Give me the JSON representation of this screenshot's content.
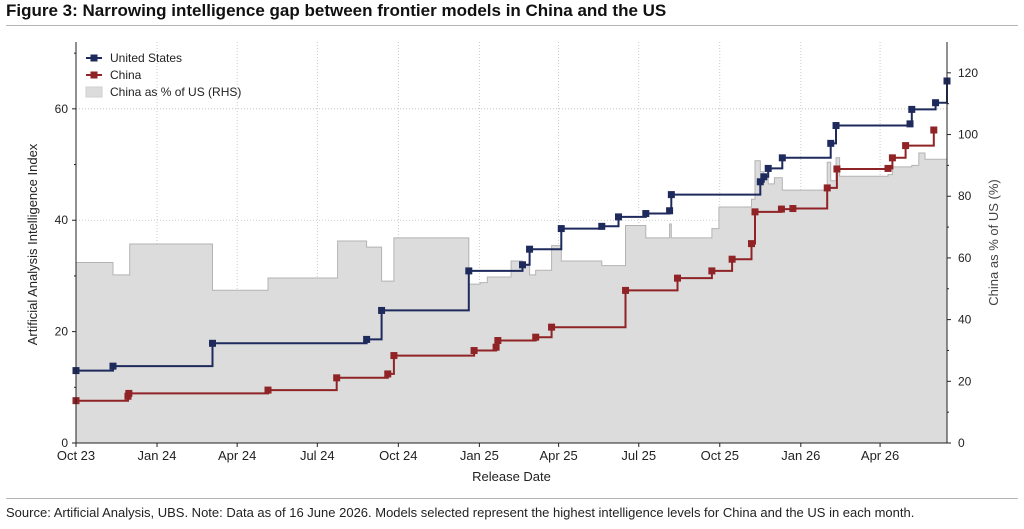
{
  "figure": {
    "title": "Figure 3: Narrowing intelligence gap between frontier models in China and the US",
    "source": "Source: Artificial Analysis, UBS. Note: Data as of 16 June 2026. Models selected represent the highest intelligence levels for China and the US in each month."
  },
  "colors": {
    "us": "#1f2a5c",
    "china": "#8f2325",
    "ratio_fill": "#dcdcdc",
    "ratio_edge": "#b3b3b3"
  },
  "chart_data": {
    "type": "line",
    "xlabel": "Release Date",
    "ylabel": "Artificial Analysis Intelligence Index",
    "y2label": "China as % of US (%)",
    "x_ticks": [
      "Oct 23",
      "Jan 24",
      "Apr 24",
      "Jul 24",
      "Oct 24",
      "Jan 25",
      "Apr 25",
      "Jul 25",
      "Oct 25",
      "Jan 26",
      "Apr 26"
    ],
    "x_range": [
      "2023-10-01",
      "2026-06-16"
    ],
    "ylim": [
      0,
      72
    ],
    "y_ticks": [
      0,
      20,
      40,
      60
    ],
    "y2lim": [
      0,
      130
    ],
    "y2_ticks": [
      0,
      20,
      40,
      60,
      80,
      100,
      120
    ],
    "grid": true,
    "legend": "top-left",
    "series": [
      {
        "name": "United States",
        "key": "us",
        "step": true,
        "points": [
          [
            "2023-10-01",
            13.0
          ],
          [
            "2023-11-12",
            13.8
          ],
          [
            "2024-03-04",
            17.9
          ],
          [
            "2024-08-26",
            18.6
          ],
          [
            "2024-09-12",
            23.8
          ],
          [
            "2024-12-20",
            30.9
          ],
          [
            "2025-02-19",
            32.0
          ],
          [
            "2025-02-27",
            34.8
          ],
          [
            "2025-04-04",
            38.5
          ],
          [
            "2025-05-20",
            38.9
          ],
          [
            "2025-06-08",
            40.6
          ],
          [
            "2025-07-09",
            41.2
          ],
          [
            "2025-08-05",
            41.7
          ],
          [
            "2025-08-07",
            44.6
          ],
          [
            "2025-11-16",
            46.9
          ],
          [
            "2025-11-20",
            47.8
          ],
          [
            "2025-11-25",
            49.3
          ],
          [
            "2025-12-11",
            51.2
          ],
          [
            "2026-02-04",
            53.8
          ],
          [
            "2026-02-10",
            57.0
          ],
          [
            "2026-05-05",
            57.3
          ],
          [
            "2026-05-07",
            59.9
          ],
          [
            "2026-06-03",
            61.1
          ],
          [
            "2026-06-16",
            65.0
          ]
        ]
      },
      {
        "name": "China",
        "key": "china",
        "step": true,
        "points": [
          [
            "2023-10-01",
            7.6
          ],
          [
            "2023-11-29",
            8.4
          ],
          [
            "2023-11-30",
            8.9
          ],
          [
            "2024-05-06",
            9.5
          ],
          [
            "2024-07-23",
            11.7
          ],
          [
            "2024-09-19",
            12.4
          ],
          [
            "2024-09-26",
            15.7
          ],
          [
            "2024-12-26",
            16.6
          ],
          [
            "2025-01-20",
            17.2
          ],
          [
            "2025-01-22",
            18.4
          ],
          [
            "2025-03-06",
            19.0
          ],
          [
            "2025-03-24",
            20.8
          ],
          [
            "2025-06-16",
            27.4
          ],
          [
            "2025-08-14",
            29.6
          ],
          [
            "2025-09-22",
            30.9
          ],
          [
            "2025-10-15",
            33.0
          ],
          [
            "2025-11-06",
            35.8
          ],
          [
            "2025-11-10",
            41.5
          ],
          [
            "2025-12-10",
            42.0
          ],
          [
            "2025-12-23",
            42.1
          ],
          [
            "2026-01-31",
            45.8
          ],
          [
            "2026-02-11",
            49.2
          ],
          [
            "2026-04-10",
            49.3
          ],
          [
            "2026-04-15",
            51.2
          ],
          [
            "2026-04-30",
            53.4
          ],
          [
            "2026-06-01",
            56.2
          ]
        ]
      },
      {
        "name": "China as % of US (RHS)",
        "key": "ratio",
        "axis": "right",
        "kind": "area",
        "step": true,
        "points": [
          [
            "2023-10-01",
            58.5
          ],
          [
            "2023-11-12",
            54.5
          ],
          [
            "2023-12-01",
            64.5
          ],
          [
            "2024-03-04",
            49.5
          ],
          [
            "2024-05-06",
            53.5
          ],
          [
            "2024-07-24",
            65.5
          ],
          [
            "2024-08-26",
            63.5
          ],
          [
            "2024-09-12",
            52.5
          ],
          [
            "2024-09-26",
            66.5
          ],
          [
            "2024-12-20",
            51.5
          ],
          [
            "2025-01-02",
            52.0
          ],
          [
            "2025-01-10",
            53.8
          ],
          [
            "2025-02-06",
            59.0
          ],
          [
            "2025-02-19",
            57.5
          ],
          [
            "2025-02-27",
            54.5
          ],
          [
            "2025-03-06",
            56.0
          ],
          [
            "2025-03-24",
            64.0
          ],
          [
            "2025-04-04",
            59.0
          ],
          [
            "2025-05-20",
            57.5
          ],
          [
            "2025-06-16",
            70.5
          ],
          [
            "2025-07-09",
            66.5
          ],
          [
            "2025-08-05",
            71.0
          ],
          [
            "2025-08-07",
            66.5
          ],
          [
            "2025-09-22",
            69.5
          ],
          [
            "2025-09-30",
            76.5
          ],
          [
            "2025-11-06",
            79.0
          ],
          [
            "2025-11-10",
            91.5
          ],
          [
            "2025-11-16",
            88.0
          ],
          [
            "2025-11-20",
            86.5
          ],
          [
            "2025-11-25",
            84.0
          ],
          [
            "2025-12-02",
            86.0
          ],
          [
            "2025-12-11",
            82.0
          ],
          [
            "2026-01-31",
            91.0
          ],
          [
            "2026-02-04",
            85.0
          ],
          [
            "2026-02-10",
            92.5
          ],
          [
            "2026-02-14",
            86.5
          ],
          [
            "2026-04-10",
            87.0
          ],
          [
            "2026-04-15",
            89.5
          ],
          [
            "2026-05-07",
            90.0
          ],
          [
            "2026-05-15",
            94.0
          ],
          [
            "2026-05-22",
            92.0
          ]
        ]
      }
    ]
  }
}
